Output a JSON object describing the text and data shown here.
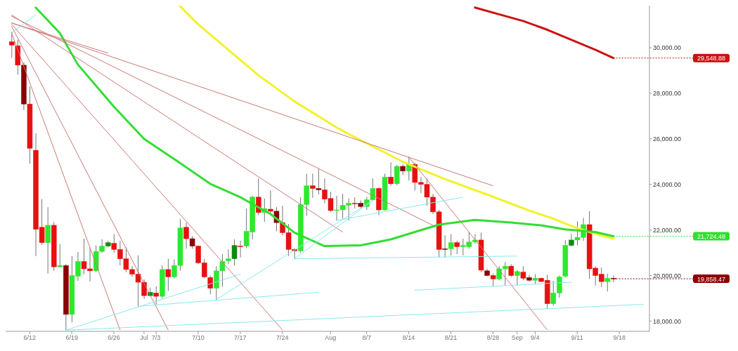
{
  "chart_data": {
    "type": "candlestick",
    "x": [
      "--06-09",
      "--06-10",
      "--06-11",
      "--06-12",
      "--06-13",
      "--06-14",
      "--06-15",
      "--06-16",
      "--06-17",
      "--06-18",
      "--06-19",
      "--06-20",
      "--06-21",
      "--06-22",
      "--06-23",
      "--06-24",
      "--06-25",
      "--06-26",
      "--06-27",
      "--06-28",
      "--06-29",
      "--06-30",
      "--07-01",
      "--07-02",
      "--07-03",
      "--07-04",
      "--07-05",
      "--07-06",
      "--07-07",
      "--07-08",
      "--07-09",
      "--07-10",
      "--07-11",
      "--07-12",
      "--07-13",
      "--07-14",
      "--07-15",
      "--07-16",
      "--07-17",
      "--07-18",
      "--07-19",
      "--07-20",
      "--07-21",
      "--07-22",
      "--07-23",
      "--07-24",
      "--07-25",
      "--07-26",
      "--07-27",
      "--07-28",
      "--07-29",
      "--07-30",
      "--07-31",
      "--08-01",
      "--08-02",
      "--08-03",
      "--08-04",
      "--08-05",
      "--08-06",
      "--08-07",
      "--08-08",
      "--08-09",
      "--08-10",
      "--08-11",
      "--08-12",
      "--08-13",
      "--08-14",
      "--08-15",
      "--08-16",
      "--08-17",
      "--08-18",
      "--08-19",
      "--08-20",
      "--08-21",
      "--08-22",
      "--08-23",
      "--08-24",
      "--08-25",
      "--08-26",
      "--08-27",
      "--08-28",
      "--08-29",
      "--08-30",
      "--08-31",
      "--09-01",
      "--09-02",
      "--09-03",
      "--09-04",
      "--09-05",
      "--09-06",
      "--09-07",
      "--09-08",
      "--09-09",
      "--09-10",
      "--09-11",
      "--09-12",
      "--09-13",
      "--09-14",
      "--09-15",
      "--09-16",
      "--09-17"
    ],
    "ohlc": [
      [
        30265,
        30706,
        29560,
        30118
      ],
      [
        30088,
        30353,
        28824,
        29235
      ],
      [
        29235,
        29350,
        27265,
        27530
      ],
      [
        27530,
        28294,
        24912,
        25588
      ],
      [
        25500,
        26235,
        20853,
        22029
      ],
      [
        22118,
        23353,
        21353,
        21441
      ],
      [
        21441,
        23000,
        20088,
        22206
      ],
      [
        22206,
        22353,
        20206,
        20382
      ],
      [
        20382,
        21382,
        20353,
        20441
      ],
      [
        20441,
        20500,
        17600,
        18294
      ],
      [
        18294,
        20853,
        17941,
        20000
      ],
      [
        19970,
        21030,
        19765,
        20618
      ],
      [
        20618,
        21618,
        20059,
        20294
      ],
      [
        20294,
        21235,
        19735,
        20206
      ],
      [
        20206,
        21324,
        20147,
        21059
      ],
      [
        21059,
        21588,
        21000,
        21294
      ],
      [
        21294,
        21530,
        21235,
        21441
      ],
      [
        21412,
        21824,
        21000,
        21147
      ],
      [
        21147,
        21530,
        20441,
        20735
      ],
      [
        20735,
        21235,
        20147,
        20265
      ],
      [
        20265,
        20412,
        19941,
        20059
      ],
      [
        20059,
        20882,
        18647,
        19706
      ],
      [
        19706,
        19824,
        18971,
        19118
      ],
      [
        19118,
        19471,
        19088,
        19265
      ],
      [
        19235,
        19529,
        18735,
        19088
      ],
      [
        19088,
        20441,
        19000,
        20265
      ],
      [
        20265,
        20735,
        19324,
        19941
      ],
      [
        19941,
        20706,
        19882,
        20441
      ],
      [
        20441,
        22471,
        20206,
        22088
      ],
      [
        22118,
        22324,
        21176,
        21618
      ],
      [
        21618,
        21735,
        21176,
        21294
      ],
      [
        21294,
        21324,
        20500,
        20559
      ],
      [
        20559,
        20735,
        19882,
        19941
      ],
      [
        19912,
        20000,
        19176,
        19441
      ],
      [
        19441,
        20412,
        18912,
        20206
      ],
      [
        20206,
        20941,
        19500,
        20618
      ],
      [
        20647,
        21147,
        20500,
        20735
      ],
      [
        20735,
        21588,
        20441,
        21324
      ],
      [
        21294,
        21530,
        20794,
        21265
      ],
      [
        21294,
        22941,
        21200,
        21941
      ],
      [
        21912,
        23500,
        21588,
        23441
      ],
      [
        23441,
        24265,
        22647,
        22765
      ],
      [
        22765,
        23382,
        22353,
        22941
      ],
      [
        22912,
        23735,
        22700,
        22824
      ],
      [
        22824,
        23000,
        21941,
        22324
      ],
      [
        22324,
        23059,
        21765,
        21882
      ],
      [
        21882,
        22265,
        20853,
        21147
      ],
      [
        21147,
        21200,
        20735,
        21088
      ],
      [
        21088,
        23441,
        21000,
        23118
      ],
      [
        23118,
        24471,
        22618,
        23941
      ],
      [
        23941,
        24471,
        23412,
        23824
      ],
      [
        23824,
        24676,
        23559,
        23765
      ],
      [
        23765,
        24265,
        23176,
        23353
      ],
      [
        23382,
        23676,
        22794,
        22853
      ],
      [
        22853,
        23500,
        22412,
        22882
      ],
      [
        22882,
        23588,
        22500,
        23088
      ],
      [
        23088,
        23382,
        22412,
        23176
      ],
      [
        23176,
        23441,
        22941,
        23150
      ],
      [
        23176,
        23300,
        22941,
        23029
      ],
      [
        23029,
        23441,
        22882,
        23324
      ],
      [
        23324,
        24265,
        23294,
        23824
      ],
      [
        23824,
        23882,
        22647,
        22882
      ],
      [
        22882,
        24471,
        22853,
        24324
      ],
      [
        24324,
        24971,
        23941,
        24029
      ],
      [
        24029,
        24853,
        23970,
        24794
      ],
      [
        24794,
        24882,
        24412,
        24588
      ],
      [
        24588,
        25206,
        24176,
        24882
      ],
      [
        24882,
        24941,
        23735,
        24088
      ],
      [
        24088,
        24324,
        23618,
        24000
      ],
      [
        24000,
        24265,
        23059,
        23441
      ],
      [
        23441,
        23588,
        22700,
        22794
      ],
      [
        22794,
        22882,
        20794,
        21147
      ],
      [
        21147,
        21765,
        20794,
        21176
      ],
      [
        21176,
        21824,
        20882,
        21441
      ],
      [
        21441,
        21530,
        20941,
        21265
      ],
      [
        21265,
        21618,
        20882,
        21324
      ],
      [
        21265,
        21912,
        21176,
        21471
      ],
      [
        21471,
        21824,
        21400,
        21559
      ],
      [
        21559,
        21882,
        20147,
        20235
      ],
      [
        20206,
        20294,
        19971,
        20000
      ],
      [
        20000,
        20088,
        19529,
        19853
      ],
      [
        19853,
        20412,
        19794,
        20294
      ],
      [
        20294,
        20588,
        19559,
        20412
      ],
      [
        20412,
        20500,
        19941,
        20000
      ],
      [
        20000,
        20235,
        19559,
        20176
      ],
      [
        20147,
        20412,
        19794,
        19882
      ],
      [
        19912,
        20029,
        19735,
        19794
      ],
      [
        19794,
        20059,
        19618,
        19882
      ],
      [
        19882,
        19912,
        19735,
        19735
      ],
      [
        19794,
        20029,
        18529,
        18765
      ],
      [
        18765,
        19765,
        18676,
        19235
      ],
      [
        19235,
        20000,
        19029,
        19941
      ],
      [
        19970,
        21559,
        19912,
        21324
      ],
      [
        21324,
        21824,
        21265,
        21559
      ],
      [
        21559,
        22382,
        21324,
        21676
      ],
      [
        21676,
        22529,
        21529,
        22235
      ],
      [
        22235,
        22824,
        19853,
        20294
      ],
      [
        20324,
        20412,
        19559,
        20000
      ],
      [
        20059,
        20353,
        19500,
        19735
      ],
      [
        19735,
        20088,
        19294,
        19882
      ],
      [
        19882,
        20000,
        19706,
        19858.47
      ]
    ],
    "colors": [
      "#e81010",
      "#e81010",
      "#8b0000",
      "#e81010",
      "#e81010",
      "#e81010",
      "#2ee82e",
      "#e81010",
      "#2ee82e",
      "#8b0000",
      "#2ee82e",
      "#2ee82e",
      "#e81010",
      "#e81010",
      "#2ee82e",
      "#2ee82e",
      "#0f8a0f",
      "#e81010",
      "#e81010",
      "#e81010",
      "#e81010",
      "#e81010",
      "#e81010",
      "#0f8a0f",
      "#e81010",
      "#2ee82e",
      "#e81010",
      "#2ee82e",
      "#2ee82e",
      "#e81010",
      "#8b0000",
      "#e81010",
      "#e81010",
      "#e81010",
      "#2ee82e",
      "#2ee82e",
      "#2ee82e",
      "#0f8a0f",
      "#e81010",
      "#2ee82e",
      "#2ee82e",
      "#e81010",
      "#2ee82e",
      "#e81010",
      "#8b0000",
      "#e81010",
      "#e81010",
      "#e81010",
      "#2ee82e",
      "#2ee82e",
      "#e81010",
      "#8b0000",
      "#e81010",
      "#e81010",
      "#2ee82e",
      "#2ee82e",
      "#2ee82e",
      "#e81010",
      "#8b0000",
      "#2ee82e",
      "#2ee82e",
      "#e81010",
      "#2ee82e",
      "#e81010",
      "#2ee82e",
      "#8b0000",
      "#2ee82e",
      "#e81010",
      "#e81010",
      "#e81010",
      "#e81010",
      "#e81010",
      "#8b0000",
      "#2ee82e",
      "#e81010",
      "#2ee82e",
      "#2ee82e",
      "#2ee82e",
      "#e81010",
      "#8b0000",
      "#e81010",
      "#2ee82e",
      "#2ee82e",
      "#e81010",
      "#2ee82e",
      "#e81010",
      "#8b0000",
      "#2ee82e",
      "#e81010",
      "#e81010",
      "#2ee82e",
      "#2ee82e",
      "#2ee82e",
      "#0f8a0f",
      "#2ee82e",
      "#2ee82e",
      "#e81010",
      "#e81010",
      "#e81010",
      "#2ee82e",
      "#8b0000"
    ],
    "series": [
      {
        "type": "line",
        "color": "#cc1111",
        "x": [
          "--08-25",
          "--08-29",
          "--09-02",
          "--09-06",
          "--09-10",
          "--09-14",
          "--09-17"
        ],
        "values": [
          31765,
          31470,
          31176,
          30794,
          30353,
          29912,
          29548.88
        ]
      },
      {
        "type": "line",
        "color": "#f2f22a",
        "x": [
          "--07-07",
          "--07-10",
          "--07-15",
          "--07-20",
          "--07-26",
          "--08-02",
          "--08-06",
          "--08-13",
          "--08-20",
          "--08-27",
          "--09-03",
          "--09-07",
          "--09-10",
          "--09-13",
          "--09-17"
        ],
        "values": [
          31824,
          31029,
          29912,
          28794,
          27647,
          26500,
          25941,
          25000,
          24235,
          23559,
          22853,
          22500,
          22176,
          21912,
          21618
        ]
      },
      {
        "type": "line",
        "color": "#33dd33",
        "x": [
          "--06-13",
          "--06-17",
          "--06-20",
          "--06-26",
          "--07-01",
          "--07-06",
          "--07-12",
          "--07-17",
          "--07-22",
          "--07-26",
          "--07-31",
          "--08-06",
          "--08-11",
          "--08-19",
          "--08-25",
          "--08-31",
          "--09-05",
          "--09-09",
          "--09-14",
          "--09-17"
        ],
        "values": [
          31765,
          30647,
          29265,
          27412,
          26000,
          25118,
          24029,
          23441,
          22706,
          21882,
          21294,
          21324,
          21588,
          22235,
          22441,
          22324,
          22206,
          22029,
          21912,
          21724.48
        ]
      },
      {
        "type": "line",
        "color": "#cc7777",
        "x": [
          "--06-09",
          "--06-25"
        ],
        "values": [
          31088,
          29765
        ]
      },
      {
        "type": "line",
        "color": "#cc7777",
        "x": [
          "--06-09",
          "--08-28"
        ],
        "values": [
          31088,
          23941
        ]
      },
      {
        "type": "line",
        "color": "#cc7777",
        "x": [
          "--06-09",
          "--08-18"
        ],
        "values": [
          31382,
          22206
        ]
      },
      {
        "type": "line",
        "color": "#cc7777",
        "x": [
          "--06-09",
          "--08-03"
        ],
        "values": [
          31441,
          21912
        ]
      },
      {
        "type": "line",
        "color": "#cc7777",
        "x": [
          "--06-09",
          "--07-24"
        ],
        "values": [
          31029,
          17618
        ]
      },
      {
        "type": "line",
        "color": "#cc7777",
        "x": [
          "--06-09",
          "--07-05"
        ],
        "values": [
          30941,
          17618
        ]
      },
      {
        "type": "line",
        "color": "#cc7777",
        "x": [
          "--06-09",
          "--06-27"
        ],
        "values": [
          30647,
          17618
        ]
      },
      {
        "type": "line",
        "color": "#cc7777",
        "x": [
          "--08-14",
          "--09-06"
        ],
        "values": [
          25206,
          17618
        ]
      },
      {
        "type": "line",
        "color": "#88e8ee",
        "x": [
          "--06-09",
          "--06-13"
        ],
        "values": [
          30647,
          31441
        ]
      },
      {
        "type": "line",
        "color": "#88e8ee",
        "x": [
          "--06-18",
          "--09-22"
        ],
        "values": [
          17600,
          18735
        ]
      },
      {
        "type": "line",
        "color": "#88e8ee",
        "x": [
          "--06-30",
          "--07-30"
        ],
        "values": [
          18647,
          19265
        ]
      },
      {
        "type": "line",
        "color": "#88e8ee",
        "x": [
          "--06-18",
          "--07-17"
        ],
        "values": [
          17600,
          20059
        ]
      },
      {
        "type": "line",
        "color": "#88e8ee",
        "x": [
          "--07-13",
          "--08-08"
        ],
        "values": [
          18941,
          23294
        ]
      },
      {
        "type": "line",
        "color": "#88e8ee",
        "x": [
          "--07-26",
          "--08-08"
        ],
        "values": [
          20735,
          23294
        ]
      },
      {
        "type": "line",
        "color": "#88e8ee",
        "x": [
          "--08-02",
          "--08-23"
        ],
        "values": [
          22412,
          23441
        ]
      },
      {
        "type": "line",
        "color": "#88e8ee",
        "x": [
          "--07-26",
          "--09-01"
        ],
        "values": [
          20735,
          20853
        ]
      },
      {
        "type": "line",
        "color": "#88e8ee",
        "x": [
          "--08-15",
          "--09-10"
        ],
        "values": [
          19353,
          19706
        ]
      }
    ],
    "xlim": [
      "--06-08",
      "--09-23"
    ],
    "xticks": [
      {
        "value": "--06-12",
        "label": "6/12"
      },
      {
        "value": "--06-19",
        "label": "6/19"
      },
      {
        "value": "--06-26",
        "label": "6/26"
      },
      {
        "value": "--07-01",
        "label": "Jul"
      },
      {
        "value": "--07-03",
        "label": "7/3"
      },
      {
        "value": "--07-10",
        "label": "7/10"
      },
      {
        "value": "--07-17",
        "label": "7/17"
      },
      {
        "value": "--07-24",
        "label": "7/24"
      },
      {
        "value": "--08-01",
        "label": "Aug"
      },
      {
        "value": "--08-07",
        "label": "8/7"
      },
      {
        "value": "--08-14",
        "label": "8/14"
      },
      {
        "value": "--08-21",
        "label": "8/21"
      },
      {
        "value": "--08-28",
        "label": "8/28"
      },
      {
        "value": "--09-01",
        "label": "Sep"
      },
      {
        "value": "--09-04",
        "label": "9/4"
      },
      {
        "value": "--09-11",
        "label": "9/11"
      },
      {
        "value": "--09-18",
        "label": "9/18"
      }
    ],
    "ylim": [
      17550,
      31850
    ],
    "yticks": [
      {
        "value": 18000,
        "label": "18,000.00"
      },
      {
        "value": 20000,
        "label": "20,000.00"
      },
      {
        "value": 22000,
        "label": "22,000.00"
      },
      {
        "value": 24000,
        "label": "24,000.00"
      },
      {
        "value": 26000,
        "label": "26,000.00"
      },
      {
        "value": 28000,
        "label": "28,000.00"
      },
      {
        "value": 30000,
        "label": "30,000.00"
      }
    ],
    "annotations": [
      {
        "text": "29,548.88",
        "x": "--09-17",
        "y": 29548.88
      },
      {
        "text": "21,724.48",
        "x": "--09-17",
        "y": 21724.48
      },
      {
        "text": "19,858.47",
        "x": "--09-17",
        "y": 19858.47
      }
    ]
  }
}
